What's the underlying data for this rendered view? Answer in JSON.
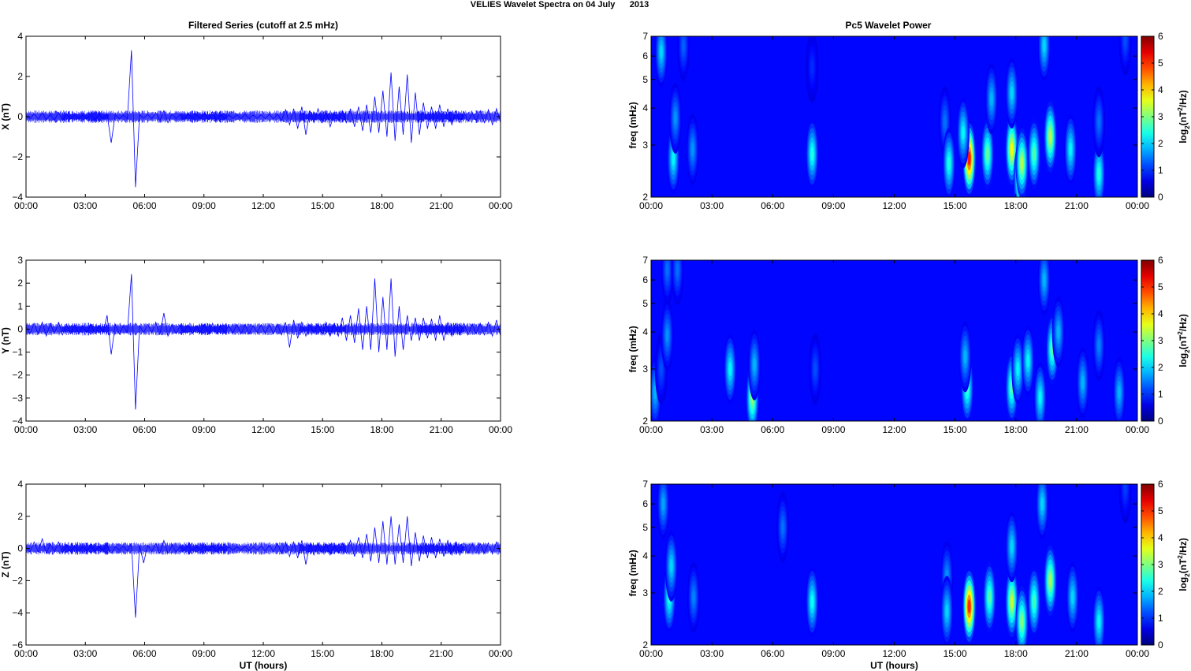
{
  "figure_title": "VELIES Wavelet Spectra on 04 July      2013",
  "left_column_title": "Filtered Series (cutoff at 2.5 mHz)",
  "right_column_title": "Pc5 Wavelet Power",
  "x_axis_label": "UT (hours)",
  "spectrogram_y_label": "freq (mHz)",
  "colorbar_label": {
    "base": "log",
    "base_sub": "2",
    "paren": "(nT",
    "power": "2",
    "tail": "/Hz)"
  },
  "colors": {
    "trace": "#0000ff",
    "axes": "#000000",
    "background": "#ffffff",
    "colormap": "jet"
  },
  "chart_data": [
    {
      "type": "line",
      "ylabel": "X (nT)",
      "ylim": [
        -4,
        4
      ],
      "yticks": [
        -4,
        -2,
        0,
        2,
        4
      ],
      "x_tick_labels": [
        "00:00",
        "03:00",
        "06:00",
        "09:00",
        "12:00",
        "15:00",
        "18:00",
        "21:00",
        "00:00"
      ],
      "xlim_hours": [
        0,
        24
      ],
      "series": [
        {
          "values": [
            0.05,
            -0.1,
            0.15,
            -0.12,
            0.2,
            -0.15,
            0.12,
            -0.18,
            0.22,
            -0.2,
            0.15,
            -0.1,
            0.1,
            -0.12,
            0.08,
            -0.1,
            0.12,
            -0.15,
            0.1,
            -0.1,
            0.12,
            -1.3,
            0.1,
            -0.1,
            0.08,
            -0.1,
            3.3,
            -3.5,
            0.1,
            -0.08,
            0.12,
            -0.1,
            0.2,
            -0.2,
            0.3,
            -0.3,
            0.15,
            -0.1,
            0.1,
            -0.12,
            0.15,
            -0.1,
            0.1,
            -0.1,
            0.12,
            -0.15,
            0.25,
            -0.2,
            0.1,
            -0.1,
            0.08,
            -0.08,
            0.1,
            -0.1,
            0.12,
            -0.1,
            0.08,
            -0.08,
            0.1,
            -0.1,
            0.12,
            -0.12,
            0.15,
            -0.2,
            0.35,
            -0.4,
            0.4,
            -0.6,
            0.5,
            -0.9,
            0.3,
            -0.3,
            0.4,
            -0.3,
            0.3,
            -0.5,
            0.15,
            -0.2,
            0.3,
            -0.3,
            0.4,
            -0.5,
            0.5,
            -0.7,
            0.6,
            -0.8,
            1.0,
            -0.8,
            1.3,
            -1.0,
            2.2,
            -1.2,
            1.5,
            -0.9,
            2.1,
            -1.3,
            1.2,
            -0.9,
            0.7,
            -0.6,
            0.5,
            -0.6,
            0.6,
            -0.5,
            0.4,
            -0.4,
            0.3,
            -0.3,
            0.25,
            -0.25,
            0.2,
            -0.2,
            0.3,
            -0.3,
            0.35,
            -0.4,
            0.4,
            -0.3
          ]
        }
      ]
    },
    {
      "type": "line",
      "ylabel": "Y (nT)",
      "ylim": [
        -4,
        3
      ],
      "yticks": [
        -4,
        -3,
        -2,
        -1,
        0,
        1,
        2,
        3
      ],
      "x_tick_labels": [
        "00:00",
        "03:00",
        "06:00",
        "09:00",
        "12:00",
        "15:00",
        "18:00",
        "21:00",
        "00:00"
      ],
      "xlim_hours": [
        0,
        24
      ],
      "series": [
        {
          "values": [
            0.1,
            -0.2,
            0.25,
            -0.2,
            0.3,
            -0.3,
            0.25,
            -0.2,
            0.3,
            -0.25,
            0.2,
            -0.2,
            0.2,
            -0.2,
            0.15,
            -0.15,
            0.2,
            -0.2,
            0.15,
            -0.15,
            0.6,
            -1.1,
            0.2,
            -0.2,
            0.15,
            -0.15,
            2.4,
            -3.5,
            0.15,
            -0.15,
            0.2,
            -0.15,
            0.3,
            -0.25,
            0.7,
            -0.3,
            0.2,
            -0.2,
            0.15,
            -0.15,
            0.2,
            -0.2,
            0.15,
            -0.15,
            0.2,
            -0.2,
            0.25,
            -0.2,
            0.15,
            -0.15,
            0.15,
            -0.15,
            0.2,
            -0.2,
            0.2,
            -0.2,
            0.15,
            -0.15,
            0.2,
            -0.2,
            0.2,
            -0.2,
            0.2,
            -0.25,
            0.3,
            -0.8,
            0.4,
            -0.4,
            0.3,
            -0.3,
            0.2,
            -0.2,
            0.25,
            -0.25,
            0.3,
            -0.3,
            0.25,
            -0.3,
            0.5,
            -0.5,
            0.6,
            -0.6,
            0.9,
            -0.9,
            1.0,
            -0.9,
            2.2,
            -1.0,
            1.4,
            -0.9,
            2.2,
            -1.2,
            1.0,
            -0.9,
            0.6,
            -0.5,
            0.5,
            -0.5,
            0.5,
            -0.4,
            0.45,
            -0.5,
            0.6,
            -0.5,
            0.3,
            -0.3,
            0.25,
            -0.25,
            0.25,
            -0.25,
            0.2,
            -0.2,
            0.25,
            -0.25,
            0.3,
            -0.3,
            0.4,
            -0.3
          ]
        }
      ]
    },
    {
      "type": "line",
      "ylabel": "Z (nT)",
      "ylim": [
        -6,
        4
      ],
      "yticks": [
        -6,
        -4,
        -2,
        0,
        2,
        4
      ],
      "x_tick_labels": [
        "00:00",
        "03:00",
        "06:00",
        "09:00",
        "12:00",
        "15:00",
        "18:00",
        "21:00",
        "00:00"
      ],
      "xlim_hours": [
        0,
        24
      ],
      "series": [
        {
          "values": [
            0.1,
            -0.2,
            0.4,
            -0.2,
            0.6,
            -0.3,
            0.3,
            -0.2,
            0.4,
            -0.3,
            0.2,
            -0.2,
            0.15,
            -0.15,
            0.1,
            -0.1,
            0.15,
            -0.15,
            0.1,
            -0.1,
            0.2,
            -0.3,
            0.1,
            -0.1,
            0.15,
            -0.15,
            0.3,
            -4.3,
            0.2,
            -0.9,
            0.2,
            -0.2,
            0.3,
            -0.3,
            0.5,
            -0.3,
            0.2,
            -0.2,
            0.1,
            -0.1,
            0.15,
            -0.15,
            0.1,
            -0.1,
            0.15,
            -0.15,
            0.2,
            -0.2,
            0.1,
            -0.1,
            0.1,
            -0.1,
            0.1,
            -0.1,
            0.15,
            -0.15,
            0.1,
            -0.1,
            0.15,
            -0.15,
            0.2,
            -0.2,
            0.3,
            -0.3,
            0.4,
            -0.5,
            0.4,
            -0.6,
            0.5,
            -1.0,
            0.3,
            -0.4,
            0.3,
            -0.3,
            0.3,
            -0.4,
            0.2,
            -0.3,
            0.3,
            -0.3,
            0.5,
            -0.5,
            0.7,
            -0.6,
            0.9,
            -0.8,
            1.3,
            -0.9,
            1.7,
            -1.0,
            2.0,
            -1.0,
            1.5,
            -0.9,
            2.0,
            -1.1,
            1.0,
            -0.8,
            0.8,
            -0.6,
            0.7,
            -0.6,
            0.6,
            -0.5,
            0.5,
            -0.4,
            0.4,
            -0.4,
            0.35,
            -0.3,
            0.3,
            -0.3,
            0.3,
            -0.3,
            0.35,
            -0.35,
            0.4,
            -0.3
          ]
        }
      ]
    },
    {
      "type": "heatmap",
      "ylabel": "freq (mHz)",
      "yscale": "log",
      "ylim": [
        2,
        7
      ],
      "yticks": [
        2,
        3,
        4,
        5,
        6,
        7
      ],
      "x_tick_labels": [
        "00:00",
        "03:00",
        "06:00",
        "09:00",
        "12:00",
        "15:00",
        "18:00",
        "21:00",
        "00:00"
      ],
      "xlim_hours": [
        0,
        24
      ],
      "colorbar": {
        "range": [
          0,
          6
        ],
        "ticks": [
          0,
          1,
          2,
          3,
          4,
          5,
          6
        ]
      },
      "power_blobs": [
        {
          "t": 0.5,
          "f": 6.2,
          "peak": 2.0
        },
        {
          "t": 1.1,
          "f": 2.7,
          "peak": 2.2
        },
        {
          "t": 1.2,
          "f": 3.7,
          "peak": 1.6
        },
        {
          "t": 1.6,
          "f": 6.5,
          "peak": 1.3
        },
        {
          "t": 2.05,
          "f": 2.9,
          "peak": 1.6
        },
        {
          "t": 7.95,
          "f": 2.8,
          "peak": 2.4
        },
        {
          "t": 7.95,
          "f": 5.5,
          "peak": 1.0
        },
        {
          "t": 14.5,
          "f": 3.6,
          "peak": 1.4
        },
        {
          "t": 14.7,
          "f": 2.6,
          "peak": 2.4
        },
        {
          "t": 15.7,
          "f": 2.7,
          "peak": 5.1
        },
        {
          "t": 15.4,
          "f": 3.3,
          "peak": 2.2
        },
        {
          "t": 16.6,
          "f": 2.8,
          "peak": 2.8
        },
        {
          "t": 16.8,
          "f": 4.3,
          "peak": 1.8
        },
        {
          "t": 17.8,
          "f": 2.9,
          "peak": 3.7
        },
        {
          "t": 17.8,
          "f": 4.5,
          "peak": 2.0
        },
        {
          "t": 18.2,
          "f": 2.3,
          "peak": 3.1
        },
        {
          "t": 18.3,
          "f": 2.6,
          "peak": 3.3
        },
        {
          "t": 18.9,
          "f": 2.8,
          "peak": 2.7
        },
        {
          "t": 19.7,
          "f": 3.2,
          "peak": 3.3
        },
        {
          "t": 19.4,
          "f": 6.5,
          "peak": 2.0
        },
        {
          "t": 20.7,
          "f": 2.9,
          "peak": 2.2
        },
        {
          "t": 22.1,
          "f": 2.4,
          "peak": 2.4
        },
        {
          "t": 22.1,
          "f": 3.6,
          "peak": 1.4
        },
        {
          "t": 23.4,
          "f": 6.8,
          "peak": 1.2
        }
      ]
    },
    {
      "type": "heatmap",
      "ylabel": "freq (mHz)",
      "yscale": "log",
      "ylim": [
        2,
        7
      ],
      "yticks": [
        2,
        3,
        4,
        5,
        6,
        7
      ],
      "x_tick_labels": [
        "00:00",
        "03:00",
        "06:00",
        "09:00",
        "12:00",
        "15:00",
        "18:00",
        "21:00",
        "00:00"
      ],
      "xlim_hours": [
        0,
        24
      ],
      "colorbar": {
        "range": [
          0,
          6
        ],
        "ticks": [
          0,
          1,
          2,
          3,
          4,
          5,
          6
        ]
      },
      "power_blobs": [
        {
          "t": 0.2,
          "f": 2.5,
          "peak": 1.8
        },
        {
          "t": 0.5,
          "f": 3.0,
          "peak": 1.2
        },
        {
          "t": 0.8,
          "f": 6.5,
          "peak": 1.4
        },
        {
          "t": 1.3,
          "f": 6.5,
          "peak": 1.4
        },
        {
          "t": 0.8,
          "f": 3.9,
          "peak": 1.6
        },
        {
          "t": 3.9,
          "f": 3.0,
          "peak": 2.2
        },
        {
          "t": 5.0,
          "f": 2.4,
          "peak": 3.1
        },
        {
          "t": 5.1,
          "f": 3.1,
          "peak": 1.8
        },
        {
          "t": 8.1,
          "f": 3.0,
          "peak": 1.2
        },
        {
          "t": 15.6,
          "f": 2.6,
          "peak": 2.6
        },
        {
          "t": 15.5,
          "f": 3.3,
          "peak": 1.8
        },
        {
          "t": 17.8,
          "f": 2.6,
          "peak": 2.7
        },
        {
          "t": 18.1,
          "f": 3.0,
          "peak": 2.2
        },
        {
          "t": 18.6,
          "f": 3.2,
          "peak": 2.2
        },
        {
          "t": 19.2,
          "f": 2.4,
          "peak": 2.2
        },
        {
          "t": 19.4,
          "f": 6.0,
          "peak": 1.8
        },
        {
          "t": 19.8,
          "f": 3.5,
          "peak": 2.7
        },
        {
          "t": 20.1,
          "f": 4.0,
          "peak": 1.8
        },
        {
          "t": 21.3,
          "f": 2.7,
          "peak": 1.8
        },
        {
          "t": 22.1,
          "f": 3.6,
          "peak": 1.5
        },
        {
          "t": 23.1,
          "f": 2.5,
          "peak": 1.8
        }
      ]
    },
    {
      "type": "heatmap",
      "ylabel": "freq (mHz)",
      "yscale": "log",
      "ylim": [
        2,
        7
      ],
      "yticks": [
        2,
        3,
        4,
        5,
        6,
        7
      ],
      "x_tick_labels": [
        "00:00",
        "03:00",
        "06:00",
        "09:00",
        "12:00",
        "15:00",
        "18:00",
        "21:00",
        "00:00"
      ],
      "xlim_hours": [
        0,
        24
      ],
      "colorbar": {
        "range": [
          0,
          6
        ],
        "ticks": [
          0,
          1,
          2,
          3,
          4,
          5,
          6
        ]
      },
      "power_blobs": [
        {
          "t": 0.6,
          "f": 6.0,
          "peak": 1.7
        },
        {
          "t": 0.9,
          "f": 2.9,
          "peak": 2.4
        },
        {
          "t": 1.0,
          "f": 3.7,
          "peak": 2.0
        },
        {
          "t": 2.1,
          "f": 2.9,
          "peak": 1.5
        },
        {
          "t": 6.5,
          "f": 5.0,
          "peak": 1.4
        },
        {
          "t": 7.95,
          "f": 2.8,
          "peak": 2.3
        },
        {
          "t": 14.6,
          "f": 3.4,
          "peak": 1.6
        },
        {
          "t": 14.6,
          "f": 2.6,
          "peak": 2.0
        },
        {
          "t": 15.7,
          "f": 2.7,
          "peak": 5.0
        },
        {
          "t": 16.7,
          "f": 2.9,
          "peak": 2.7
        },
        {
          "t": 17.8,
          "f": 2.8,
          "peak": 3.4
        },
        {
          "t": 17.8,
          "f": 4.3,
          "peak": 2.0
        },
        {
          "t": 18.3,
          "f": 2.4,
          "peak": 3.0
        },
        {
          "t": 18.9,
          "f": 2.8,
          "peak": 2.6
        },
        {
          "t": 19.7,
          "f": 3.3,
          "peak": 3.2
        },
        {
          "t": 19.3,
          "f": 6.0,
          "peak": 2.0
        },
        {
          "t": 20.8,
          "f": 2.9,
          "peak": 2.0
        },
        {
          "t": 22.1,
          "f": 2.4,
          "peak": 2.2
        },
        {
          "t": 23.4,
          "f": 6.8,
          "peak": 1.1
        }
      ]
    }
  ]
}
